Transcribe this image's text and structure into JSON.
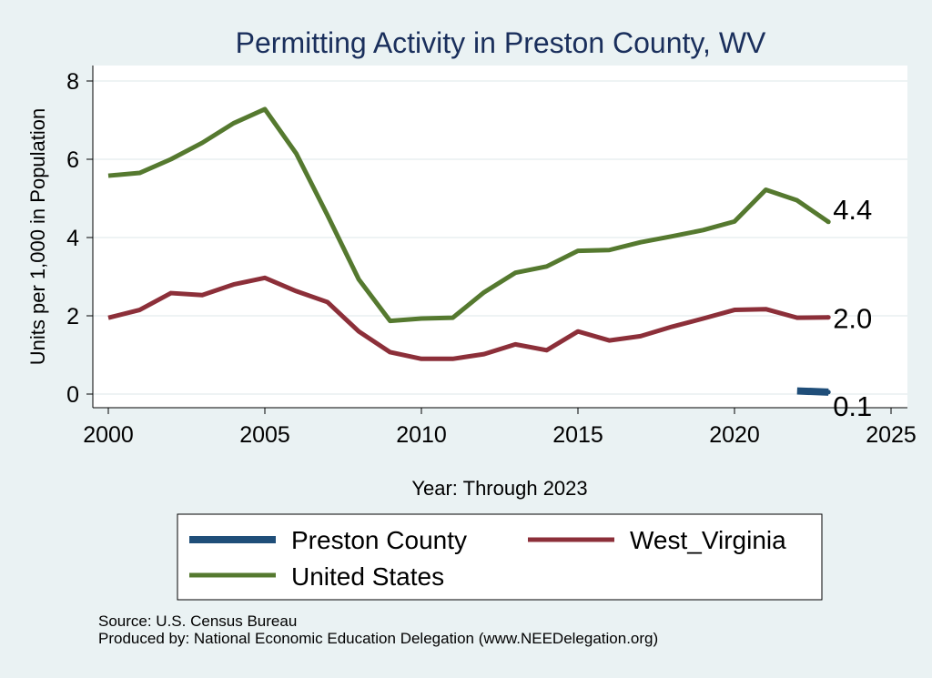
{
  "chart_data": {
    "type": "line",
    "title": "Permitting Activity in Preston County, WV",
    "xlabel": "Year: Through 2023",
    "ylabel": "Units per 1,000 in Population",
    "xlim": [
      2000,
      2025
    ],
    "ylim": [
      0,
      8
    ],
    "x_ticks": [
      2000,
      2005,
      2010,
      2015,
      2020,
      2025
    ],
    "x_tick_labels": [
      "2000",
      "2005",
      "2010",
      "2015",
      "2020",
      "2025"
    ],
    "y_ticks": [
      0,
      2,
      4,
      6,
      8
    ],
    "y_tick_labels": [
      "0",
      "2",
      "4",
      "6",
      "8"
    ],
    "grid": "horizontal",
    "legend_position": "bottom",
    "series": [
      {
        "name": "Preston County",
        "color": "#1f4e79",
        "x": [
          2022,
          2023
        ],
        "y": [
          0.08,
          0.05
        ],
        "end_label": "0.1"
      },
      {
        "name": "West_Virginia",
        "color": "#8c2f39",
        "x": [
          2000,
          2001,
          2002,
          2003,
          2004,
          2005,
          2006,
          2007,
          2008,
          2009,
          2010,
          2011,
          2012,
          2013,
          2014,
          2015,
          2016,
          2017,
          2018,
          2019,
          2020,
          2021,
          2022,
          2023
        ],
        "y": [
          1.95,
          2.15,
          2.58,
          2.53,
          2.8,
          2.97,
          2.63,
          2.35,
          1.6,
          1.07,
          0.9,
          0.9,
          1.02,
          1.27,
          1.12,
          1.6,
          1.37,
          1.48,
          1.72,
          1.93,
          2.15,
          2.17,
          1.95,
          1.96
        ],
        "end_label": "2.0"
      },
      {
        "name": "United States",
        "color": "#55792f",
        "x": [
          2000,
          2001,
          2002,
          2003,
          2004,
          2005,
          2006,
          2007,
          2008,
          2009,
          2010,
          2011,
          2012,
          2013,
          2014,
          2015,
          2016,
          2017,
          2018,
          2019,
          2020,
          2021,
          2022,
          2023
        ],
        "y": [
          5.58,
          5.65,
          6.0,
          6.42,
          6.92,
          7.28,
          6.15,
          4.57,
          2.93,
          1.87,
          1.93,
          1.95,
          2.6,
          3.1,
          3.26,
          3.66,
          3.68,
          3.88,
          4.03,
          4.19,
          4.41,
          5.22,
          4.95,
          4.4
        ],
        "end_label": "4.4"
      }
    ],
    "legend_order": [
      "Preston County",
      "West_Virginia",
      "United States"
    ]
  },
  "footnote": {
    "source": "Source: U.S. Census Bureau",
    "produced_by": "Produced by: National Economic Education Delegation (www.NEEDelegation.org)"
  }
}
